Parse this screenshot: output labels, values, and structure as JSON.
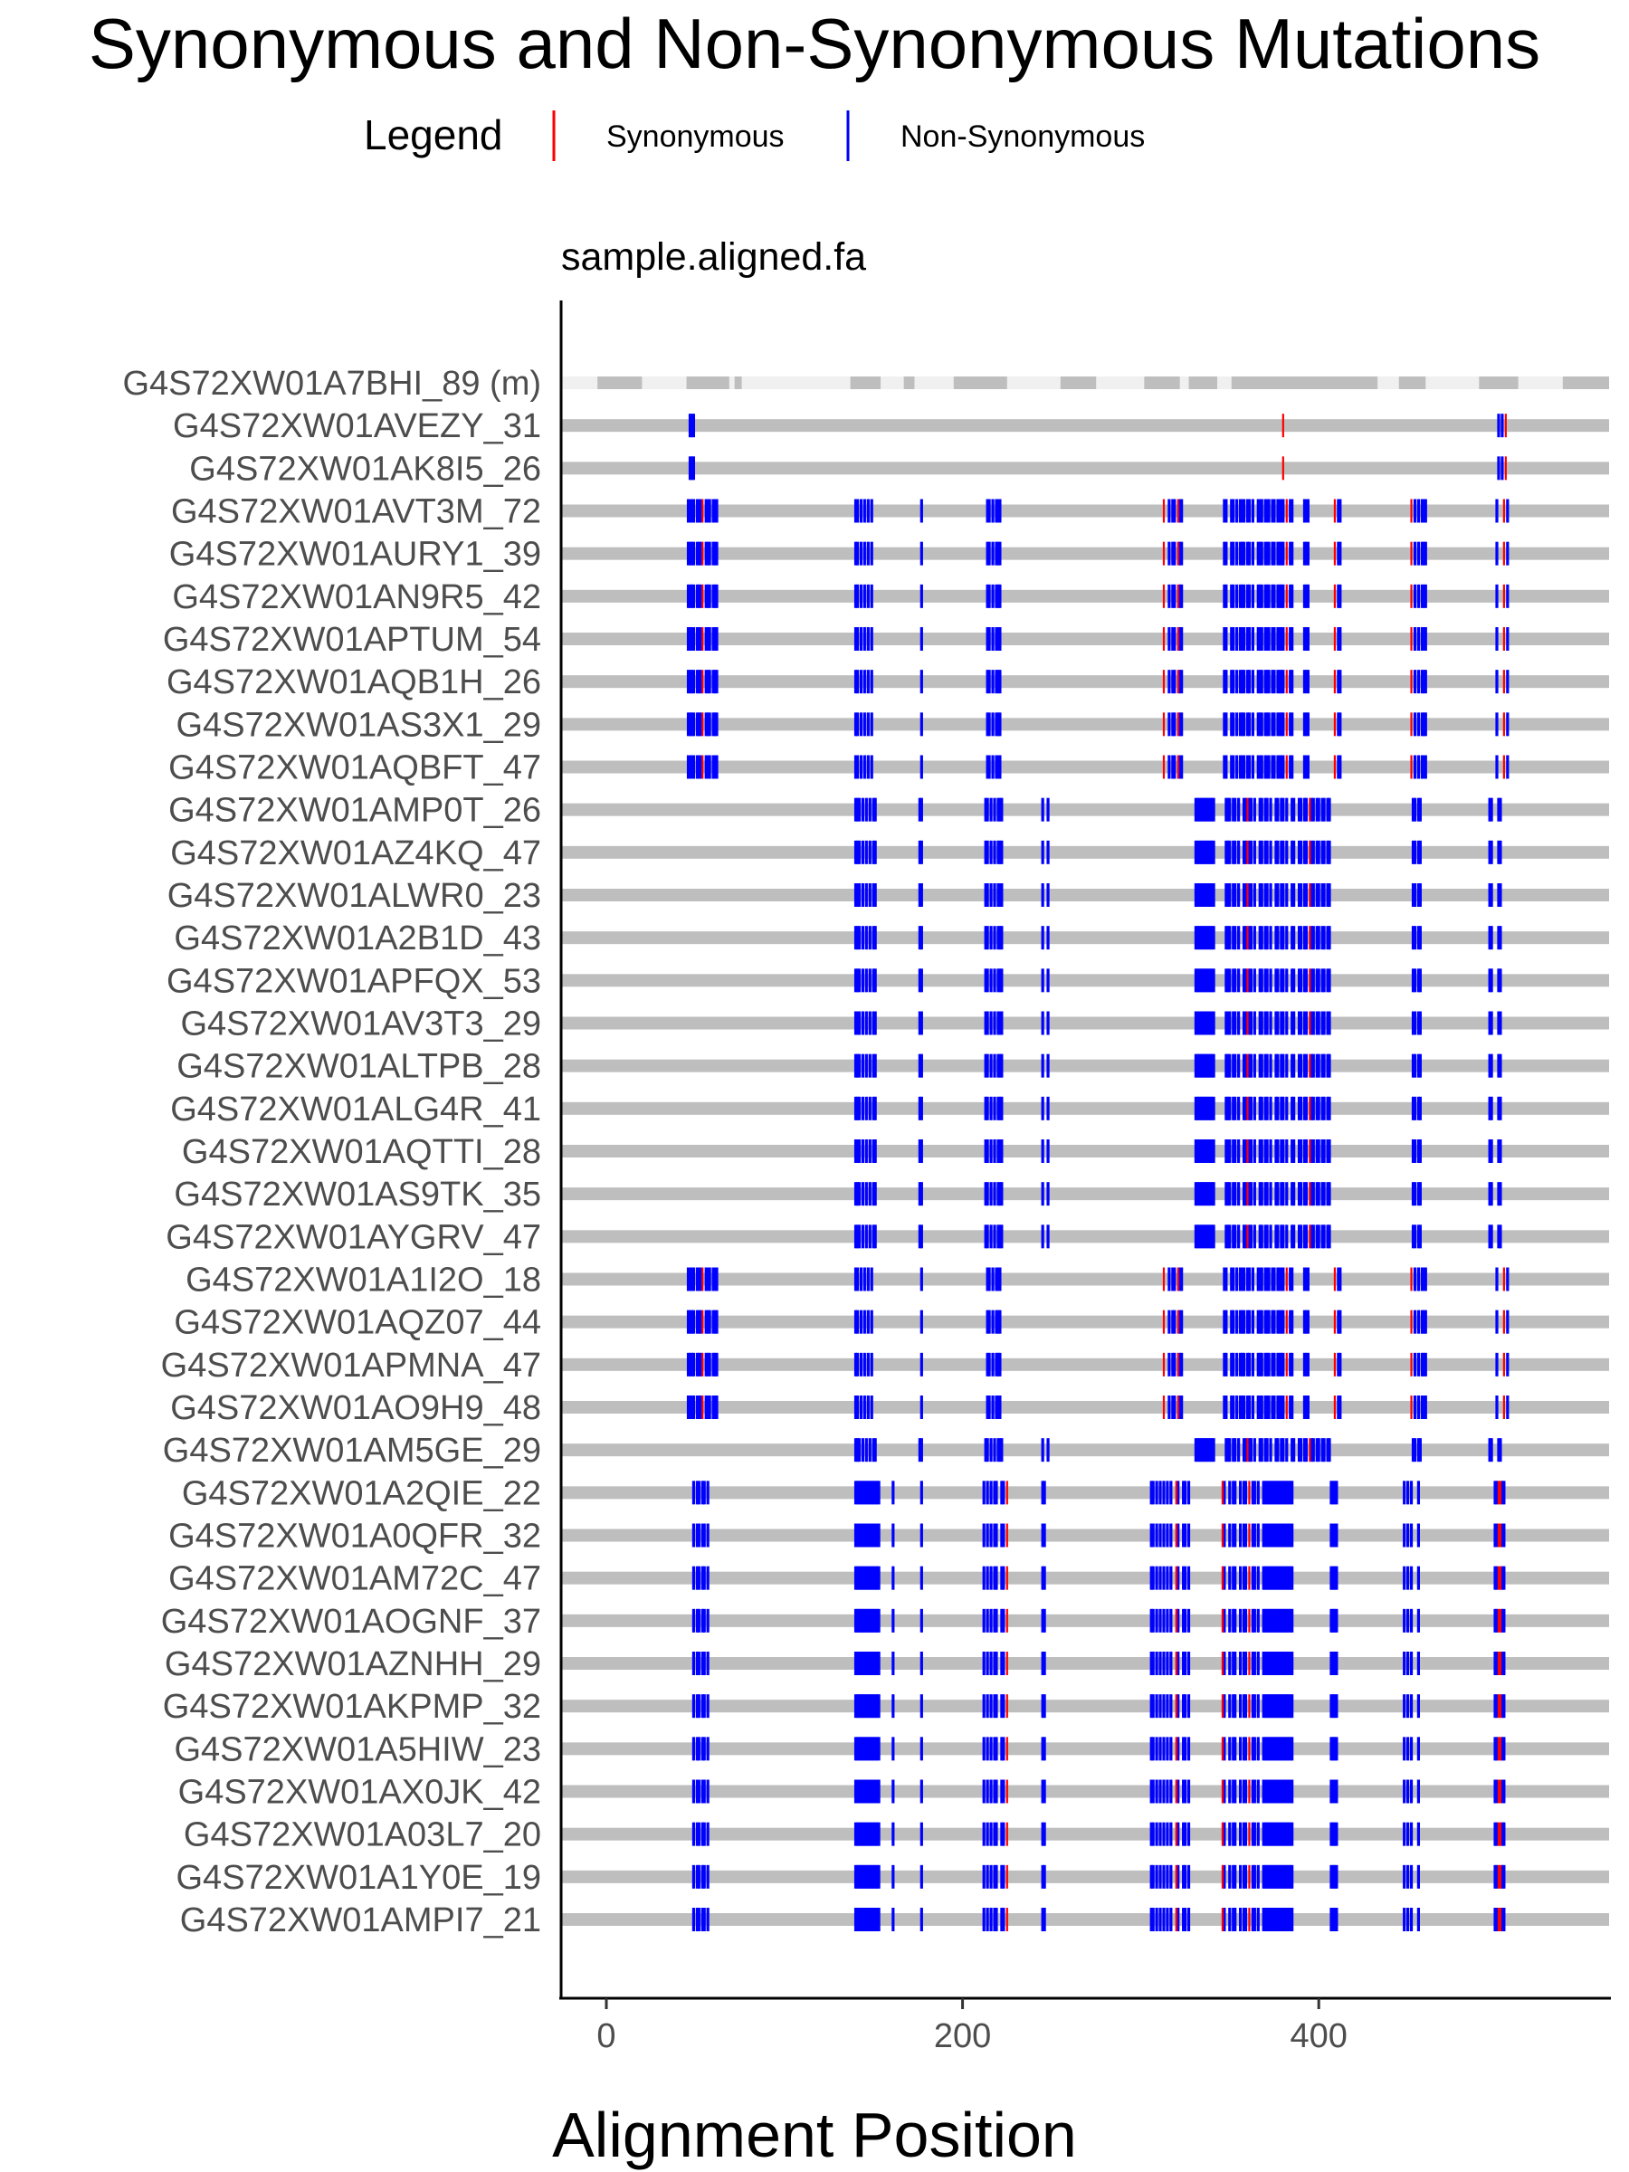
{
  "chart_data": {
    "type": "mutation-alignment",
    "title": "Synonymous and Non-Synonymous Mutations",
    "facet_label": "sample.aligned.fa",
    "xlabel": "Alignment Position",
    "ylabel": "",
    "xlim": [
      -25,
      562
    ],
    "x_ticks": [
      0,
      200,
      400
    ],
    "x_tick_labels": [
      "0",
      "200",
      "400"
    ],
    "legend": {
      "title": "Legend",
      "position": "top",
      "entries": [
        {
          "name": "Synonymous",
          "color": "#ff0000"
        },
        {
          "name": "Non-Synonymous",
          "color": "#0000ff"
        }
      ]
    },
    "colors": {
      "synonymous": "#ff0000",
      "non_synonymous": "#0000ff",
      "sequence": "#bebebe",
      "gap": "#f0f0f0"
    },
    "master_sequence": {
      "label": "G4S72XW01A7BHI_89 (m)",
      "gap_ranges": [
        [
          -25,
          -5
        ],
        [
          20,
          45
        ],
        [
          69,
          72
        ],
        [
          76,
          137
        ],
        [
          154,
          167
        ],
        [
          173,
          195
        ],
        [
          225,
          255
        ],
        [
          275,
          302
        ],
        [
          322,
          327
        ],
        [
          343,
          351
        ],
        [
          433,
          445
        ],
        [
          460,
          490
        ],
        [
          512,
          537
        ]
      ]
    },
    "reads": [
      {
        "label": "G4S72XW01AVEZY_31",
        "pattern": "P0"
      },
      {
        "label": "G4S72XW01AK8I5_26",
        "pattern": "P0"
      },
      {
        "label": "G4S72XW01AVT3M_72",
        "pattern": "P1"
      },
      {
        "label": "G4S72XW01AURY1_39",
        "pattern": "P1"
      },
      {
        "label": "G4S72XW01AN9R5_42",
        "pattern": "P1"
      },
      {
        "label": "G4S72XW01APTUM_54",
        "pattern": "P1"
      },
      {
        "label": "G4S72XW01AQB1H_26",
        "pattern": "P1"
      },
      {
        "label": "G4S72XW01AS3X1_29",
        "pattern": "P1"
      },
      {
        "label": "G4S72XW01AQBFT_47",
        "pattern": "P1"
      },
      {
        "label": "G4S72XW01AMP0T_26",
        "pattern": "P2"
      },
      {
        "label": "G4S72XW01AZ4KQ_47",
        "pattern": "P2"
      },
      {
        "label": "G4S72XW01ALWR0_23",
        "pattern": "P2"
      },
      {
        "label": "G4S72XW01A2B1D_43",
        "pattern": "P2"
      },
      {
        "label": "G4S72XW01APFQX_53",
        "pattern": "P2"
      },
      {
        "label": "G4S72XW01AV3T3_29",
        "pattern": "P2"
      },
      {
        "label": "G4S72XW01ALTPB_28",
        "pattern": "P2"
      },
      {
        "label": "G4S72XW01ALG4R_41",
        "pattern": "P2"
      },
      {
        "label": "G4S72XW01AQTTI_28",
        "pattern": "P2"
      },
      {
        "label": "G4S72XW01AS9TK_35",
        "pattern": "P2"
      },
      {
        "label": "G4S72XW01AYGRV_47",
        "pattern": "P2"
      },
      {
        "label": "G4S72XW01A1I2O_18",
        "pattern": "P1"
      },
      {
        "label": "G4S72XW01AQZ07_44",
        "pattern": "P1"
      },
      {
        "label": "G4S72XW01APMNA_47",
        "pattern": "P1"
      },
      {
        "label": "G4S72XW01AO9H9_48",
        "pattern": "P1"
      },
      {
        "label": "G4S72XW01AM5GE_29",
        "pattern": "P2"
      },
      {
        "label": "G4S72XW01A2QIE_22",
        "pattern": "P3"
      },
      {
        "label": "G4S72XW01A0QFR_32",
        "pattern": "P3"
      },
      {
        "label": "G4S72XW01AM72C_47",
        "pattern": "P3"
      },
      {
        "label": "G4S72XW01AOGNF_37",
        "pattern": "P3"
      },
      {
        "label": "G4S72XW01AZNHH_29",
        "pattern": "P3"
      },
      {
        "label": "G4S72XW01AKPMP_32",
        "pattern": "P3"
      },
      {
        "label": "G4S72XW01A5HIW_23",
        "pattern": "P3"
      },
      {
        "label": "G4S72XW01AX0JK_42",
        "pattern": "P3"
      },
      {
        "label": "G4S72XW01A03L7_20",
        "pattern": "P3"
      },
      {
        "label": "G4S72XW01A1Y0E_19",
        "pattern": "P3"
      },
      {
        "label": "G4S72XW01AMPI7_21",
        "pattern": "P3"
      }
    ],
    "patterns": {
      "P0": {
        "non_synonymous": [
          47,
          48,
          49,
          501,
          503
        ],
        "synonymous": [
          380,
          505
        ]
      },
      "P1": {
        "non_synonymous": [
          46,
          47,
          48,
          49,
          51,
          52,
          53,
          56,
          57,
          58,
          60,
          61,
          62,
          140,
          141,
          143,
          145,
          147,
          149,
          177,
          214,
          215,
          217,
          219,
          220,
          221,
          316,
          318,
          319,
          322,
          323,
          347,
          348,
          351,
          352,
          354,
          356,
          357,
          358,
          360,
          361,
          363,
          366,
          367,
          368,
          370,
          371,
          372,
          374,
          375,
          377,
          378,
          379,
          380,
          384,
          385,
          392,
          393,
          394,
          411,
          412,
          454,
          456,
          458,
          459,
          460,
          500,
          506
        ],
        "synonymous": [
          54,
          313,
          321,
          382,
          409,
          452,
          504
        ]
      },
      "P2": {
        "non_synonymous": [
          140,
          141,
          142,
          144,
          146,
          148,
          150,
          151,
          176,
          177,
          213,
          214,
          216,
          218,
          220,
          221,
          222,
          245,
          248,
          331,
          332,
          333,
          334,
          335,
          336,
          337,
          338,
          339,
          340,
          341,
          348,
          349,
          350,
          352,
          353,
          355,
          358,
          359,
          361,
          362,
          364,
          367,
          368,
          370,
          371,
          373,
          376,
          377,
          379,
          380,
          382,
          385,
          386,
          389,
          390,
          392,
          393,
          396,
          397,
          399,
          400,
          402,
          403,
          405,
          406,
          453,
          454,
          456,
          457,
          496,
          497,
          501,
          502
        ],
        "synonymous": [
          360,
          395
        ]
      },
      "P3": {
        "non_synonymous": [
          49,
          51,
          52,
          54,
          55,
          57,
          140,
          141,
          142,
          143,
          144,
          145,
          146,
          147,
          148,
          149,
          150,
          151,
          152,
          153,
          161,
          177,
          212,
          214,
          216,
          218,
          219,
          222,
          223,
          245,
          246,
          306,
          307,
          309,
          311,
          313,
          315,
          317,
          321,
          324,
          325,
          327,
          347,
          350,
          352,
          353,
          356,
          358,
          359,
          363,
          364,
          366,
          369,
          370,
          371,
          372,
          373,
          374,
          375,
          376,
          377,
          378,
          379,
          380,
          381,
          382,
          383,
          384,
          385,
          407,
          408,
          409,
          410,
          448,
          450,
          452,
          456,
          499,
          500,
          503,
          504
        ],
        "synonymous": [
          225,
          320,
          346,
          361,
          501,
          502
        ]
      }
    }
  }
}
